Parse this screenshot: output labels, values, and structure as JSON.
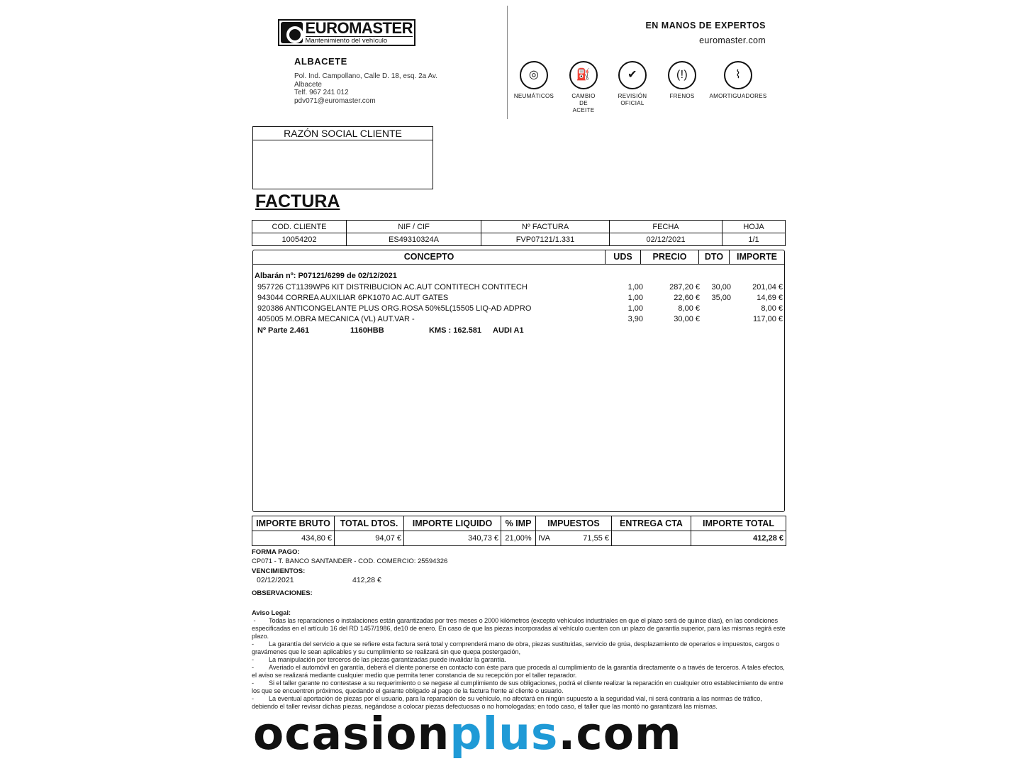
{
  "header": {
    "brand": "EUROMASTER",
    "brand_tagline": "Mantenimiento del vehículo",
    "city": "ALBACETE",
    "address": [
      "Pol. Ind. Campollano, Calle D. 18, esq. 2a Av.",
      "Albacete",
      "Telf. 967 241 012",
      "pdv071@euromaster.com"
    ],
    "slogan": "EN MANOS DE EXPERTOS",
    "website": "euromaster.com"
  },
  "services": [
    {
      "icon": "tire-icon",
      "label": "NEUMÁTICOS"
    },
    {
      "icon": "oil-change-icon",
      "label": "CAMBIO DE ACEITE"
    },
    {
      "icon": "car-check-icon",
      "label": "REVISIÓN OFICIAL"
    },
    {
      "icon": "brake-icon",
      "label": "FRENOS"
    },
    {
      "icon": "shock-absorber-icon",
      "label": "AMORTIGUADORES"
    }
  ],
  "client_box": {
    "title": "RAZÓN SOCIAL CLIENTE"
  },
  "doc_title": "FACTURA",
  "invoice_header": {
    "labels": [
      "COD. CLIENTE",
      "NIF / CIF",
      "Nº FACTURA",
      "FECHA",
      "HOJA"
    ],
    "values": [
      "10054202",
      "ES49310324A",
      "FVP07121/1.331",
      "02/12/2021",
      "1/1"
    ]
  },
  "concept_headers": [
    "CONCEPTO",
    "UDS",
    "PRECIO",
    "DTO",
    "IMPORTE"
  ],
  "albaran": "Albarán nº: P07121/6299 de 02/12/2021",
  "lines": [
    {
      "concept": "957726 CT1139WP6 KIT DISTRIBUCION AC.AUT CONTITECH CONTITECH",
      "uds": "1,00",
      "precio": "287,20 €",
      "dto": "30,00",
      "importe": "201,04 €"
    },
    {
      "concept": "943044 CORREA AUXILIAR 6PK1070 AC.AUT GATES",
      "uds": "1,00",
      "precio": "22,60 €",
      "dto": "35,00",
      "importe": "14,69 €"
    },
    {
      "concept": "920386 ANTICONGELANTE PLUS ORG.ROSA 50%5L(15505 LIQ-AD ADPRO",
      "uds": "1,00",
      "precio": "8,00 €",
      "dto": "",
      "importe": "8,00 €"
    },
    {
      "concept": "405005 M.OBRA MECANICA (VL) AUT.VAR -",
      "uds": "3,90",
      "precio": "30,00 €",
      "dto": "",
      "importe": "117,00 €"
    }
  ],
  "vehicle": {
    "parte": "Nº Parte 2.461",
    "plate": "1160HBB",
    "kms": "KMS : 162.581",
    "model": "AUDI A1"
  },
  "totals": {
    "labels": [
      "IMPORTE BRUTO",
      "TOTAL DTOS.",
      "IMPORTE LIQUIDO",
      "% IMP",
      "IMPUESTOS",
      "ENTREGA CTA",
      "IMPORTE TOTAL"
    ],
    "bruto": "434,80 €",
    "dtos": "94,07 €",
    "liquido": "340,73 €",
    "pct": "21,00%",
    "tax_name": "IVA",
    "impuestos": "71,55 €",
    "entrega": "",
    "total": "412,28 €"
  },
  "payment": {
    "forma_label": "FORMA PAGO:",
    "forma": "CP071 - T. BANCO SANTANDER  - COD. COMERCIO: 25594326",
    "venc_label": "VENCIMIENTOS:",
    "venc_date": "02/12/2021",
    "venc_amount": "412,28 €",
    "obs_label": "OBSERVACIONES:"
  },
  "legal": {
    "title": "Aviso Legal:",
    "items": [
      "Todas las reparaciones o instalaciones están garantizadas por tres meses o 2000 kilómetros (excepto vehículos industriales en que el plazo será de quince días), en las condiciones especificadas en el artículo 16 del RD 1457/1986, de10 de enero. En caso de que las piezas incorporadas al vehículo cuenten con un plazo de garantía superior, para las mismas regirá este plazo.",
      "La garantía del servicio a que se refiere esta factura será total y comprenderá mano de obra, piezas sustituidas, servicio de grúa, desplazamiento de operarios e impuestos, cargos o gravámenes que le sean aplicables y su cumplimiento se realizará sin que quepa postergación,",
      "La manipulación por terceros de las piezas garantizadas puede invalidar la garantía.",
      "Averiado el automóvil en garantía, deberá el cliente ponerse en contacto con éste para que proceda al cumplimiento de la garantía directamente o a través de terceros. A tales efectos, el aviso se realizará mediante cualquier medio que permita tener constancia de su recepción por el taller reparador.",
      "Si el taller garante no contestase a su requerimiento o se negase al cumplimiento de sus obligaciones, podrá el cliente realizar la reparación en cualquier otro establecimiento de entre los que se encuentren próximos, quedando el garante obligado al pago de la factura frente al cliente o usuario.",
      "La eventual aportación de piezas por el usuario, para la reparación de su vehículo, no afectará en ningún supuesto a la seguridad vial, ni será contraria a las normas de tráfico, debiendo el taller revisar dichas piezas, negándose a colocar piezas defectuosas o no homologadas; en todo caso, el taller que las montó no garantizará las mismas."
    ]
  },
  "watermark": {
    "part1": "ocasion",
    "part2": "plus",
    "part3": ".com",
    "accent": "#1f9ad6"
  }
}
